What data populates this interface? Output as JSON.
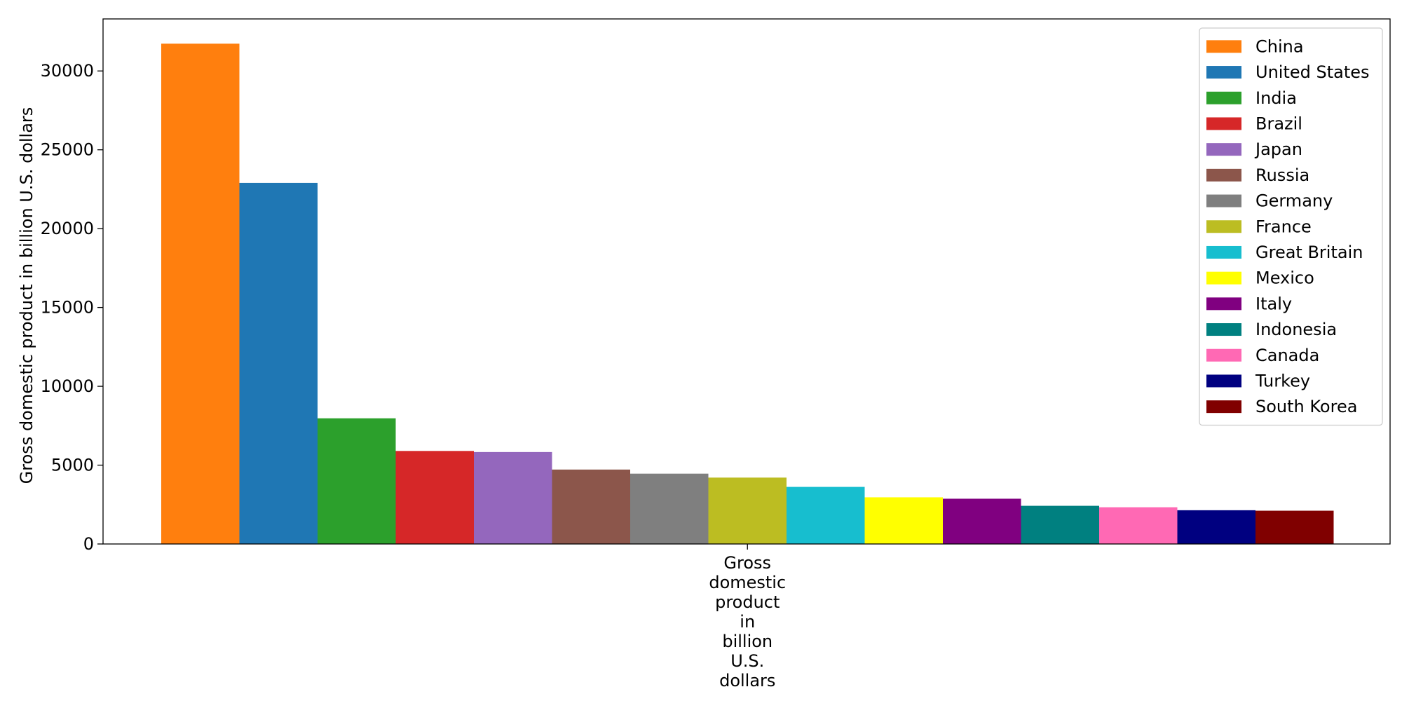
{
  "chart_data": {
    "type": "bar",
    "title": "",
    "categories": [
      "Gross domestic product in billion U.S. dollars"
    ],
    "x_tick_label_lines": [
      "Gross",
      "domestic",
      "product",
      "in",
      "billion",
      "U.S.",
      "dollars"
    ],
    "xlabel": "",
    "ylabel": "Gross domestic product in billion U.S. dollars",
    "ylim": [
      0,
      33300
    ],
    "yticks": [
      0,
      5000,
      10000,
      15000,
      20000,
      25000,
      30000
    ],
    "grid": false,
    "legend_position": "top-right",
    "series": [
      {
        "name": "China",
        "values": [
          31730
        ],
        "color": "#ff7f0e"
      },
      {
        "name": "United States",
        "values": [
          22900
        ],
        "color": "#1f77b4"
      },
      {
        "name": "India",
        "values": [
          7970
        ],
        "color": "#2ca02c"
      },
      {
        "name": "Brazil",
        "values": [
          5900
        ],
        "color": "#d62728"
      },
      {
        "name": "Japan",
        "values": [
          5830
        ],
        "color": "#9467bd"
      },
      {
        "name": "Russia",
        "values": [
          4720
        ],
        "color": "#8c564b"
      },
      {
        "name": "Germany",
        "values": [
          4460
        ],
        "color": "#7f7f7f"
      },
      {
        "name": "France",
        "values": [
          4210
        ],
        "color": "#bcbd22"
      },
      {
        "name": "Great Britain",
        "values": [
          3620
        ],
        "color": "#17becf"
      },
      {
        "name": "Mexico",
        "values": [
          2960
        ],
        "color": "#ffff00"
      },
      {
        "name": "Italy",
        "values": [
          2870
        ],
        "color": "#800080"
      },
      {
        "name": "Indonesia",
        "values": [
          2420
        ],
        "color": "#008080"
      },
      {
        "name": "Canada",
        "values": [
          2330
        ],
        "color": "#ff69b4"
      },
      {
        "name": "Turkey",
        "values": [
          2140
        ],
        "color": "#000080"
      },
      {
        "name": "South Korea",
        "values": [
          2110
        ],
        "color": "#800000"
      }
    ]
  }
}
